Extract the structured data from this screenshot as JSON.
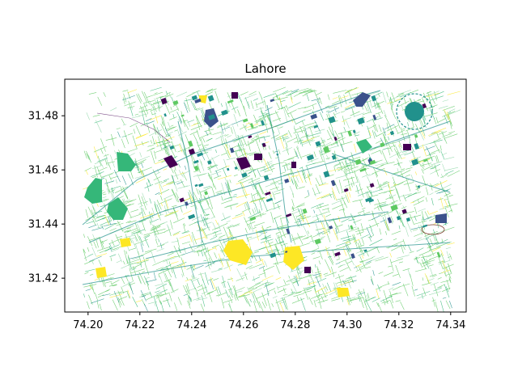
{
  "title": "Lahore",
  "map": {
    "x_ticks": [
      "74.20",
      "74.22",
      "74.24",
      "74.26",
      "74.28",
      "74.30",
      "74.32",
      "74.34"
    ],
    "y_ticks": [
      "31.48",
      "31.46",
      "31.44",
      "31.42"
    ],
    "x_range": [
      74.191,
      74.346
    ],
    "y_range": [
      31.4075,
      31.4935
    ],
    "features": [
      {
        "kind": "blocks",
        "color": "#3b528b",
        "name": "large-blue-blocks"
      },
      {
        "kind": "blocks",
        "color": "#21918c",
        "name": "teal-blocks"
      },
      {
        "kind": "blocks",
        "color": "#5ec962",
        "name": "green-parks"
      },
      {
        "kind": "blocks",
        "color": "#440154",
        "name": "purple-blocks"
      },
      {
        "kind": "blocks",
        "color": "#fde725",
        "name": "yellow-areas"
      }
    ],
    "street_colors": [
      "#5ec962",
      "#35b779",
      "#21918c",
      "#8fd7a8",
      "#fde725"
    ]
  },
  "chart_data": {
    "type": "map",
    "title": "Lahore",
    "xlabel": "",
    "ylabel": "",
    "xlim": [
      74.191,
      74.346
    ],
    "ylim": [
      31.4075,
      31.4935
    ],
    "xticks": [
      74.2,
      74.22,
      74.24,
      74.26,
      74.28,
      74.3,
      74.32,
      74.34
    ],
    "yticks": [
      31.48,
      31.46,
      31.44,
      31.42
    ],
    "grid": false,
    "colormap": "viridis"
  }
}
